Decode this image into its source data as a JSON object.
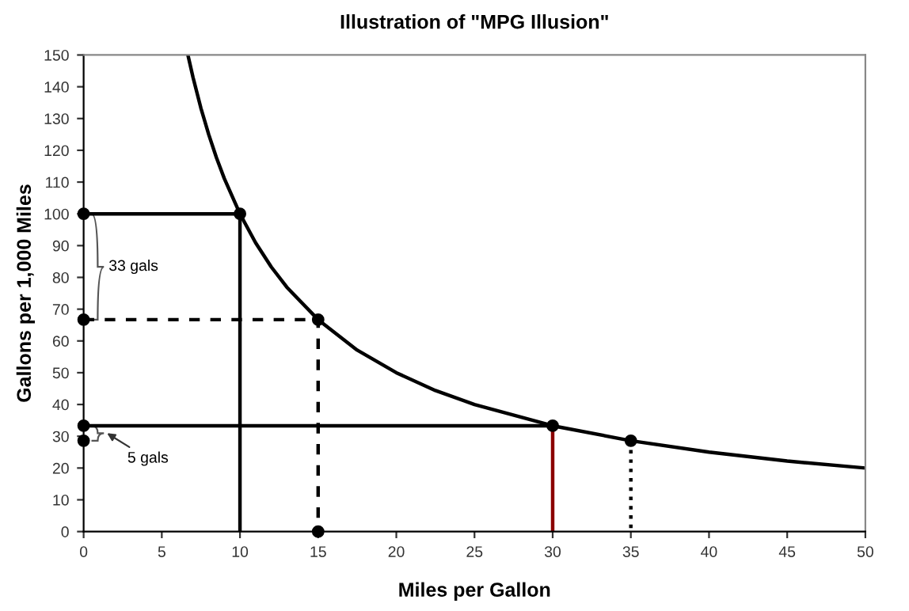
{
  "chart_data": {
    "type": "line",
    "title": "Illustration of \"MPG Illusion\"",
    "xlabel": "Miles per Gallon",
    "ylabel": "Gallons per 1,000 Miles",
    "xlim": [
      0,
      50
    ],
    "ylim": [
      0,
      150
    ],
    "xticks": [
      0,
      5,
      10,
      15,
      20,
      25,
      30,
      35,
      40,
      45,
      50
    ],
    "yticks": [
      0,
      10,
      20,
      30,
      40,
      50,
      60,
      70,
      80,
      90,
      100,
      110,
      120,
      130,
      140,
      150
    ],
    "grid": false,
    "series": [
      {
        "color": "#000000",
        "line_style": "solid",
        "x": [
          6.67,
          7,
          7.5,
          8,
          8.5,
          9,
          10,
          11,
          12,
          13,
          15,
          17.5,
          20,
          22.5,
          25,
          30,
          35,
          40,
          45,
          50
        ],
        "values": [
          150,
          142.9,
          133.3,
          125,
          117.6,
          111.1,
          100,
          90.9,
          83.3,
          76.9,
          66.7,
          57.1,
          50,
          44.4,
          40,
          33.3,
          28.6,
          25,
          22.2,
          20
        ]
      },
      {
        "color": "#000000",
        "line_style": "solid",
        "x": [
          0,
          10,
          10
        ],
        "values": [
          100,
          100,
          0
        ]
      },
      {
        "color": "#000000",
        "line_style": "dashed",
        "x": [
          0,
          15,
          15
        ],
        "values": [
          66.7,
          66.7,
          0
        ]
      },
      {
        "color": "#000000",
        "line_style": "solid",
        "x": [
          0,
          30
        ],
        "values": [
          33.3,
          33.3
        ]
      },
      {
        "color": "#8b0000",
        "line_style": "solid",
        "x": [
          30,
          30
        ],
        "values": [
          33.3,
          0
        ]
      },
      {
        "color": "#000000",
        "line_style": "dotted",
        "x": [
          35,
          35
        ],
        "values": [
          28.6,
          0
        ]
      },
      {
        "type": "scatter",
        "color": "#000000",
        "marker": "circle",
        "x": [
          0,
          10,
          0,
          15,
          0,
          30,
          0,
          35,
          15
        ],
        "values": [
          100,
          100,
          66.7,
          66.7,
          33.3,
          33.3,
          28.6,
          28.6,
          0
        ]
      }
    ],
    "annotations": [
      "33 gals",
      "5 gals"
    ]
  }
}
